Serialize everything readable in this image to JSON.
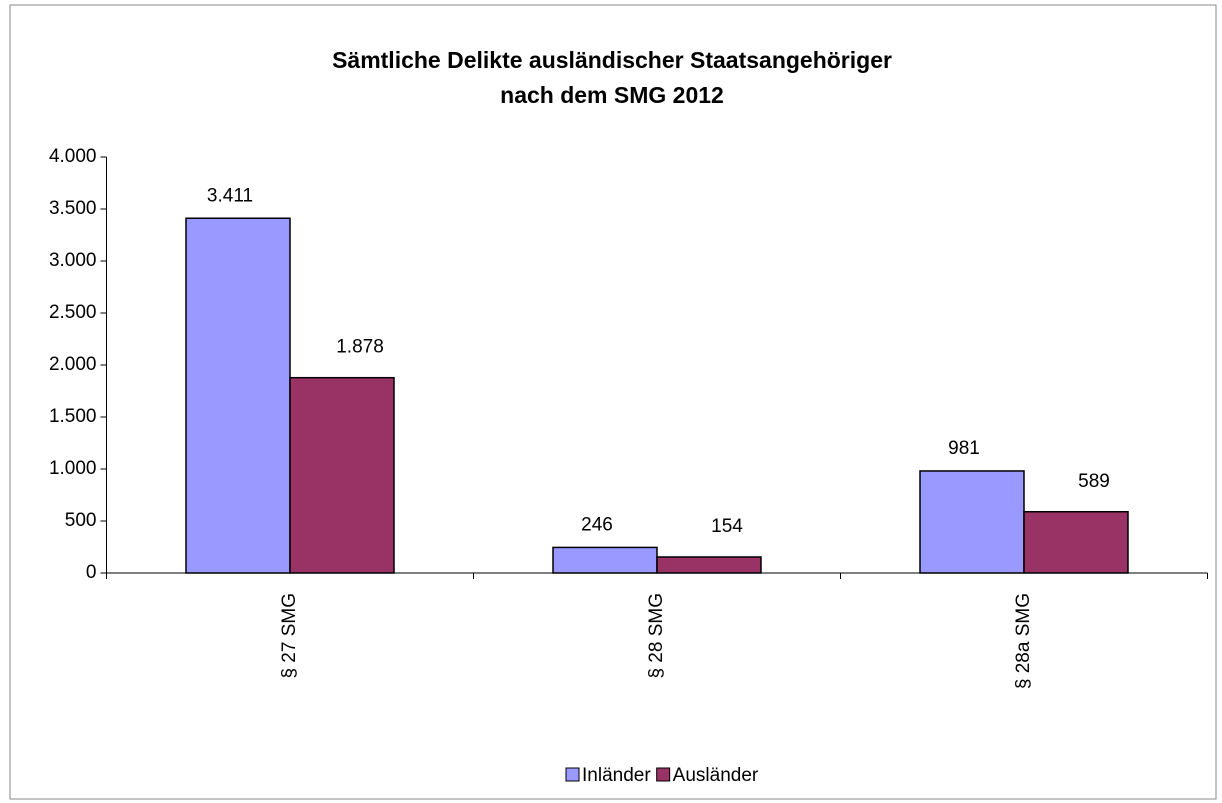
{
  "chart_data": {
    "type": "bar",
    "title": [
      "Sämtliche Delikte ausländischer Staatsangehöriger",
      "nach dem SMG 2012"
    ],
    "categories": [
      "§ 27 SMG",
      "§ 28 SMG",
      "§ 28a SMG"
    ],
    "series": [
      {
        "name": "Inländer",
        "color": "#9999ff",
        "values": [
          3411,
          246,
          981
        ],
        "value_labels": [
          "3.411",
          "246",
          "981"
        ]
      },
      {
        "name": "Ausländer",
        "color": "#993366",
        "values": [
          1878,
          154,
          589
        ],
        "value_labels": [
          "1.878",
          "154",
          "589"
        ]
      }
    ],
    "ylim": [
      0,
      4000
    ],
    "yticks": [
      0,
      500,
      {
        "value": 1000,
        "label": "1.000"
      },
      {
        "value": 1500,
        "label": "1.500"
      },
      {
        "value": 2000,
        "label": "2.000"
      },
      {
        "value": 2500,
        "label": "2.500"
      },
      {
        "value": 3000,
        "label": "3.000"
      },
      {
        "value": 3500,
        "label": "3.500"
      },
      {
        "value": 4000,
        "label": "4.000"
      }
    ],
    "grid": false,
    "legend": "bottom"
  }
}
